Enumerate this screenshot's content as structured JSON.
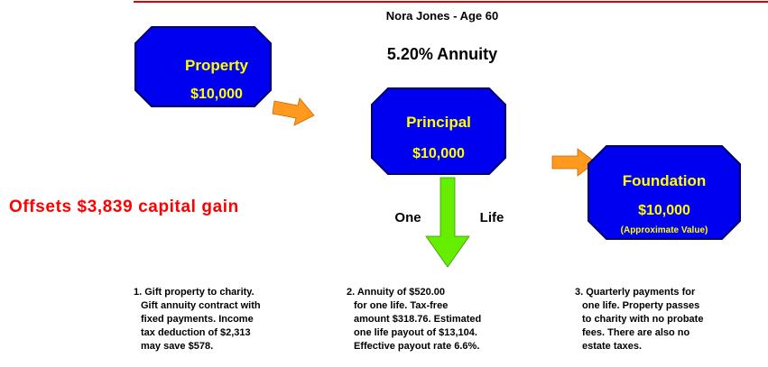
{
  "header": {
    "title": "Nora Jones - Age 60",
    "subtitle": "5.20% Annuity"
  },
  "nodes": [
    {
      "label": "Property",
      "value": "$10,000"
    },
    {
      "label": "Principal",
      "value": "$10,000"
    },
    {
      "label": "Foundation",
      "value": "$10,000",
      "note": "(Approximate Value)"
    }
  ],
  "arrow_labels": [
    "One",
    "Life"
  ],
  "callout": "Offsets $3,839 capital gain",
  "notes": [
    [
      "1. Gift property to charity.",
      "Gift annuity contract with",
      "fixed payments.  Income",
      "tax deduction of $2,313",
      "may save $578."
    ],
    [
      "2. Annuity of $520.00",
      "for one life.  Tax-free",
      "amount $318.76.  Estimated",
      "one life payout of $13,104.",
      "Effective payout rate 6.6%."
    ],
    [
      "3. Quarterly payments for",
      "one life. Property passes",
      "to charity with no probate",
      "fees.  There are also no",
      "estate taxes."
    ]
  ]
}
